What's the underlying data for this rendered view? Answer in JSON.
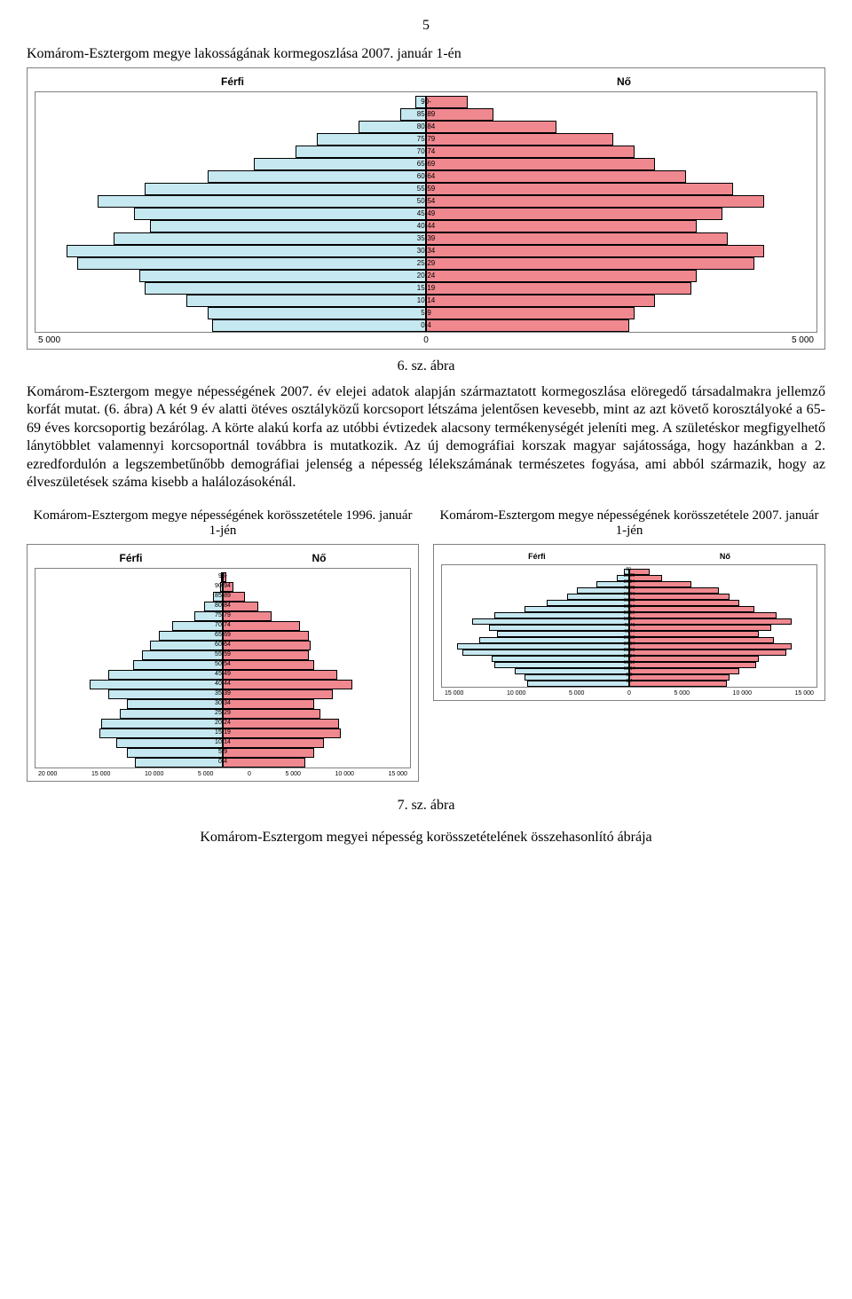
{
  "page_number": "5",
  "main_chart": {
    "title": "Komárom-Esztergom megye lakosságának kormegoszlása 2007. január 1-én",
    "legend_left": "Férfi",
    "legend_right": "Nő",
    "male_color": "#c6e8f0",
    "female_color": "#f08890",
    "border_color": "#000000",
    "max_value": 15000,
    "axis_labels": [
      "5 000",
      "0",
      "5 000"
    ],
    "rows": [
      {
        "label": "90-",
        "m": 400,
        "f": 1600
      },
      {
        "label": "85-89",
        "m": 1000,
        "f": 2600
      },
      {
        "label": "80-84",
        "m": 2600,
        "f": 5000
      },
      {
        "label": "75-79",
        "m": 4200,
        "f": 7200
      },
      {
        "label": "70-74",
        "m": 5000,
        "f": 8000
      },
      {
        "label": "65-69",
        "m": 6600,
        "f": 8800
      },
      {
        "label": "60-64",
        "m": 8400,
        "f": 10000
      },
      {
        "label": "55-59",
        "m": 10800,
        "f": 11800
      },
      {
        "label": "50-54",
        "m": 12600,
        "f": 13000
      },
      {
        "label": "45-49",
        "m": 11200,
        "f": 11400
      },
      {
        "label": "40-44",
        "m": 10600,
        "f": 10400
      },
      {
        "label": "35-39",
        "m": 12000,
        "f": 11600
      },
      {
        "label": "30-34",
        "m": 13800,
        "f": 13000
      },
      {
        "label": "25-29",
        "m": 13400,
        "f": 12600
      },
      {
        "label": "20-24",
        "m": 11000,
        "f": 10400
      },
      {
        "label": "15-19",
        "m": 10800,
        "f": 10200
      },
      {
        "label": "10-14",
        "m": 9200,
        "f": 8800
      },
      {
        "label": "5-9",
        "m": 8400,
        "f": 8000
      },
      {
        "label": "0-4",
        "m": 8200,
        "f": 7800
      }
    ]
  },
  "fig_caption_1": "6. sz. ábra",
  "body_paragraph": "Komárom-Esztergom megye népességének 2007. év elejei adatok alapján származtatott kormegoszlása elöregedő társadalmakra jellemző korfát mutat. (6. ábra) A két 9 év alatti ötéves osztályközű korcsoport létszáma jelentősen kevesebb, mint az azt követő korosztályoké a 65-69 éves korcsoportig bezárólag. A körte alakú korfa az utóbbi évtizedek alacsony termékenységét jeleníti meg. A születéskor megfigyelhető lánytöbblet valamennyi korcsoportnál továbbra is mutatkozik. Az új demográfiai korszak magyar sajátossága, hogy hazánkban a 2. ezredfordulón a legszembetűnőbb demográfiai jelenség a népesség lélekszámának természetes fogyása, ami abból származik, hogy az élveszületések száma kisebb a halálozásokénál.",
  "left_chart": {
    "title": "Komárom-Esztergom megye népességének korösszetétele 1996. január 1-jén",
    "legend_left": "Férfi",
    "legend_right": "Nő",
    "male_color": "#c6e8f0",
    "female_color": "#f08890",
    "max_value": 20000,
    "axis_labels": [
      "20 000",
      "15 000",
      "10 000",
      "5 000",
      "0",
      "5 000",
      "10 000",
      "15 000"
    ],
    "rows": [
      {
        "label": "95-",
        "m": 100,
        "f": 400
      },
      {
        "label": "90-94",
        "m": 300,
        "f": 1100
      },
      {
        "label": "85-89",
        "m": 1000,
        "f": 2400
      },
      {
        "label": "80-84",
        "m": 2000,
        "f": 3800
      },
      {
        "label": "75-79",
        "m": 3000,
        "f": 5200
      },
      {
        "label": "70-74",
        "m": 5400,
        "f": 8200
      },
      {
        "label": "65-69",
        "m": 6800,
        "f": 9200
      },
      {
        "label": "60-64",
        "m": 7800,
        "f": 9400
      },
      {
        "label": "55-59",
        "m": 8600,
        "f": 9200
      },
      {
        "label": "50-54",
        "m": 9600,
        "f": 9800
      },
      {
        "label": "45-49",
        "m": 12200,
        "f": 12200
      },
      {
        "label": "40-44",
        "m": 14200,
        "f": 13800
      },
      {
        "label": "35-39",
        "m": 12200,
        "f": 11800
      },
      {
        "label": "30-34",
        "m": 10200,
        "f": 9800
      },
      {
        "label": "25-29",
        "m": 11000,
        "f": 10400
      },
      {
        "label": "20-24",
        "m": 13000,
        "f": 12400
      },
      {
        "label": "15-19",
        "m": 13200,
        "f": 12600
      },
      {
        "label": "10-14",
        "m": 11400,
        "f": 10800
      },
      {
        "label": "5-9",
        "m": 10200,
        "f": 9800
      },
      {
        "label": "0-4",
        "m": 9400,
        "f": 8800
      }
    ]
  },
  "right_chart": {
    "title": "Komárom-Esztergom megye népességének korösszetétele 2007. január 1-jén",
    "legend_left": "Férfi",
    "legend_right": "Nő",
    "male_color": "#c6e8f0",
    "female_color": "#f08890",
    "max_value": 15000,
    "axis_labels": [
      "15 000",
      "10 000",
      "5 000",
      "0",
      "5 000",
      "10 000",
      "15 000"
    ],
    "rows": [
      {
        "label": "90-",
        "m": 400,
        "f": 1600
      },
      {
        "label": "85-89",
        "m": 1000,
        "f": 2600
      },
      {
        "label": "80-84",
        "m": 2600,
        "f": 5000
      },
      {
        "label": "75-79",
        "m": 4200,
        "f": 7200
      },
      {
        "label": "70-74",
        "m": 5000,
        "f": 8000
      },
      {
        "label": "65-69",
        "m": 6600,
        "f": 8800
      },
      {
        "label": "60-64",
        "m": 8400,
        "f": 10000
      },
      {
        "label": "55-59",
        "m": 10800,
        "f": 11800
      },
      {
        "label": "50-54",
        "m": 12600,
        "f": 13000
      },
      {
        "label": "45-49",
        "m": 11200,
        "f": 11400
      },
      {
        "label": "40-44",
        "m": 10600,
        "f": 10400
      },
      {
        "label": "35-39",
        "m": 12000,
        "f": 11600
      },
      {
        "label": "30-34",
        "m": 13800,
        "f": 13000
      },
      {
        "label": "25-29",
        "m": 13400,
        "f": 12600
      },
      {
        "label": "20-24",
        "m": 11000,
        "f": 10400
      },
      {
        "label": "15-19",
        "m": 10800,
        "f": 10200
      },
      {
        "label": "10-14",
        "m": 9200,
        "f": 8800
      },
      {
        "label": "5-9",
        "m": 8400,
        "f": 8000
      },
      {
        "label": "0-4",
        "m": 8200,
        "f": 7800
      }
    ]
  },
  "fig_caption_2": "7. sz. ábra",
  "footer_title": "Komárom-Esztergom megyei népesség korösszetételének összehasonlító ábrája"
}
